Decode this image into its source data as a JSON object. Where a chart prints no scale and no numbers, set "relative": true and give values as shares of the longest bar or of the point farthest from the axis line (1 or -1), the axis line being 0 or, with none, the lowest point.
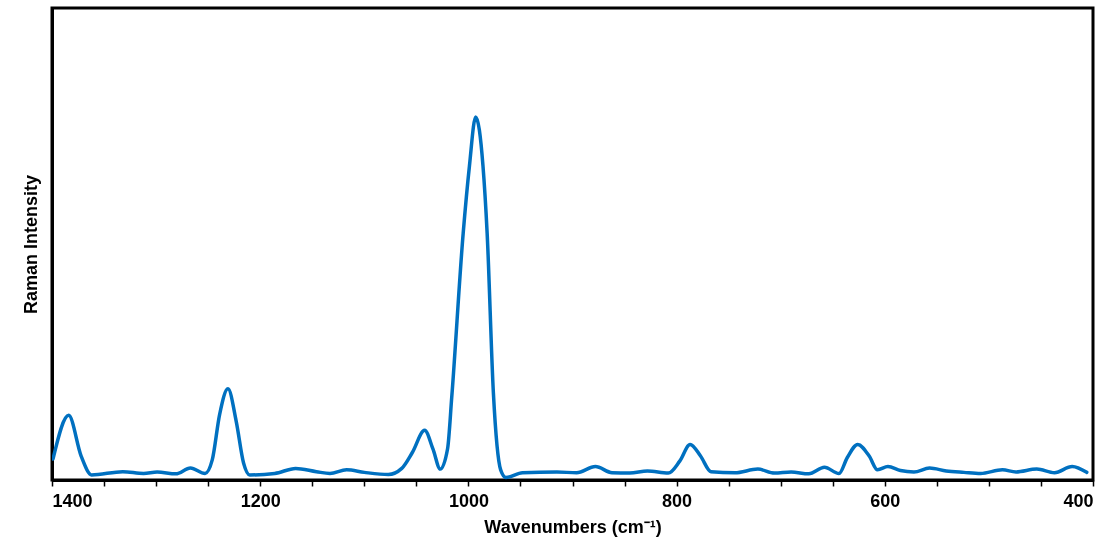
{
  "chart_data": {
    "type": "line",
    "xlabel": "Wavenumbers (cm⁻¹)",
    "ylabel": "Raman Intensity",
    "relative": true,
    "xlim": [
      1400,
      400
    ],
    "xticks": [
      1400,
      {
        "value": 1350,
        "label": null
      },
      {
        "value": 1300,
        "label": null
      },
      {
        "value": 1250,
        "label": null
      },
      1200,
      {
        "value": 1150,
        "label": null
      },
      {
        "value": 1100,
        "label": null
      },
      {
        "value": 1050,
        "label": null
      },
      1000,
      {
        "value": 950,
        "label": null
      },
      {
        "value": 900,
        "label": null
      },
      {
        "value": 850,
        "label": null
      },
      800,
      {
        "value": 750,
        "label": null
      },
      {
        "value": 700,
        "label": null
      },
      {
        "value": 650,
        "label": null
      },
      600,
      {
        "value": 550,
        "label": null
      },
      {
        "value": 500,
        "label": null
      },
      {
        "value": 450,
        "label": null
      },
      400
    ],
    "grid": false,
    "marker": "none",
    "line_style": "solid",
    "x": [
      1399,
      1384,
      1372,
      1362,
      1332,
      1312,
      1299,
      1281,
      1267,
      1253,
      1246,
      1239,
      1231,
      1223,
      1216,
      1210,
      1186,
      1166,
      1146,
      1133,
      1117,
      1100,
      1077,
      1064,
      1054,
      1042,
      1034,
      1027,
      1020,
      1016,
      1005,
      999,
      993,
      986,
      982,
      976,
      969,
      964,
      948,
      915,
      896,
      878,
      862,
      845,
      828,
      808,
      797,
      787,
      777,
      767,
      744,
      722,
      706,
      690,
      673,
      658,
      644,
      636,
      626,
      615,
      607,
      597,
      585,
      572,
      557,
      541,
      524,
      508,
      487,
      474,
      454,
      437,
      420,
      406
    ],
    "series": [
      {
        "color": "#0070c0",
        "values": [
          0.058,
          0.178,
          0.066,
          0.014,
          0.023,
          0.018,
          0.022,
          0.017,
          0.033,
          0.018,
          0.056,
          0.18,
          0.251,
          0.161,
          0.047,
          0.014,
          0.018,
          0.032,
          0.023,
          0.018,
          0.028,
          0.021,
          0.015,
          0.032,
          0.075,
          0.137,
          0.085,
          0.03,
          0.086,
          0.228,
          0.68,
          0.865,
          1.0,
          0.865,
          0.68,
          0.24,
          0.028,
          0.007,
          0.02,
          0.022,
          0.02,
          0.037,
          0.02,
          0.019,
          0.025,
          0.019,
          0.052,
          0.098,
          0.066,
          0.023,
          0.02,
          0.03,
          0.019,
          0.022,
          0.017,
          0.035,
          0.018,
          0.062,
          0.098,
          0.066,
          0.028,
          0.037,
          0.026,
          0.022,
          0.033,
          0.025,
          0.021,
          0.018,
          0.028,
          0.022,
          0.03,
          0.02,
          0.037,
          0.021
        ]
      }
    ]
  }
}
